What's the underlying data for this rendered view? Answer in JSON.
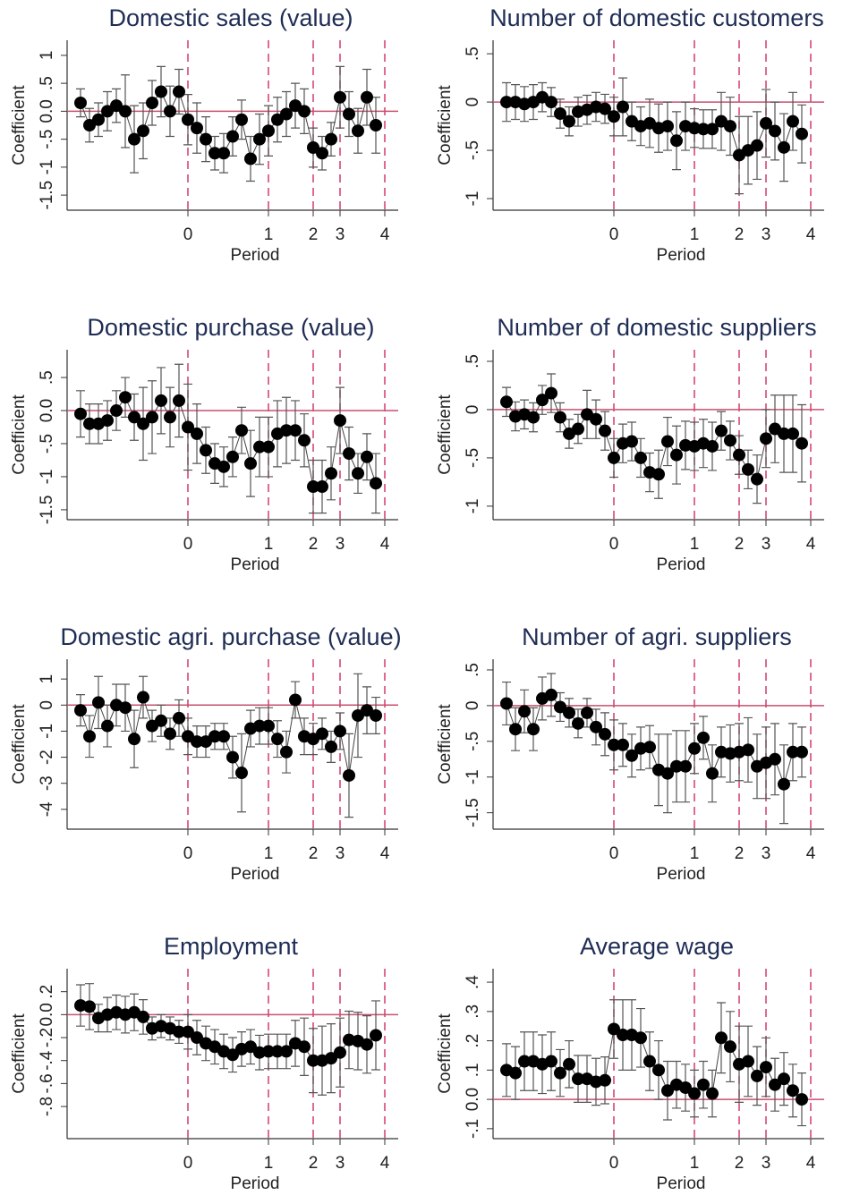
{
  "chart_data": [
    {
      "type": "errorbar",
      "title": "Domestic sales (value)",
      "xlabel": "Period",
      "ylabel": "Coefficient",
      "x": [
        -12,
        -11,
        -10,
        -9,
        -8,
        -7,
        -6,
        -5,
        -4,
        -3,
        -2,
        -1,
        0,
        1,
        2,
        3,
        4,
        5,
        6,
        7,
        8,
        9,
        10,
        11,
        12,
        13,
        14,
        15,
        16,
        17,
        18,
        19,
        20,
        21
      ],
      "values": [
        0.15,
        -0.25,
        -0.15,
        0.0,
        0.1,
        0.0,
        -0.5,
        -0.35,
        0.15,
        0.35,
        0.0,
        0.35,
        -0.15,
        -0.3,
        -0.5,
        -0.75,
        -0.75,
        -0.45,
        -0.15,
        -0.85,
        -0.5,
        -0.35,
        -0.15,
        -0.05,
        0.1,
        0.0,
        -0.65,
        -0.75,
        -0.5,
        0.25,
        -0.05,
        -0.35,
        0.25,
        -0.25
      ],
      "errors": [
        0.25,
        0.3,
        0.3,
        0.35,
        0.3,
        0.65,
        0.6,
        0.5,
        0.4,
        0.45,
        0.45,
        0.4,
        0.45,
        0.45,
        0.4,
        0.3,
        0.35,
        0.35,
        0.35,
        0.4,
        0.45,
        0.45,
        0.4,
        0.4,
        0.4,
        0.4,
        0.35,
        0.3,
        0.3,
        0.55,
        0.4,
        0.4,
        0.5,
        0.5
      ],
      "xlim": [
        -13.5,
        23.5
      ],
      "ylim": [
        -1.77,
        1.27
      ],
      "xticks": [
        {
          "value": 0,
          "label": "0"
        },
        {
          "value": 9,
          "label": "1"
        },
        {
          "value": 14,
          "label": "2"
        },
        {
          "value": 17,
          "label": "3"
        },
        {
          "value": 22,
          "label": "4"
        }
      ],
      "yticks": [
        {
          "value": 1,
          "label": "1"
        },
        {
          "value": 0.5,
          "label": ".5"
        },
        {
          "value": 0,
          "label": "0.0"
        },
        {
          "value": -0.5,
          "label": "-.5"
        },
        {
          "value": -1,
          "label": "-1"
        },
        {
          "value": -1.5,
          "label": "-1.5"
        }
      ],
      "hline": 0
    },
    {
      "type": "errorbar",
      "title": "Number of domestic customers",
      "xlabel": "Period",
      "ylabel": "Coefficient",
      "x": [
        -12,
        -11,
        -10,
        -9,
        -8,
        -7,
        -6,
        -5,
        -4,
        -3,
        -2,
        -1,
        0,
        1,
        2,
        3,
        4,
        5,
        6,
        7,
        8,
        9,
        10,
        11,
        12,
        13,
        14,
        15,
        16,
        17,
        18,
        19,
        20,
        21
      ],
      "values": [
        0.0,
        0.0,
        -0.02,
        0.0,
        0.05,
        0.0,
        -0.12,
        -0.2,
        -0.1,
        -0.08,
        -0.05,
        -0.07,
        -0.15,
        -0.05,
        -0.2,
        -0.25,
        -0.22,
        -0.27,
        -0.25,
        -0.4,
        -0.25,
        -0.27,
        -0.28,
        -0.28,
        -0.2,
        -0.25,
        -0.55,
        -0.5,
        -0.45,
        -0.22,
        -0.3,
        -0.47,
        -0.2,
        -0.33
      ],
      "errors": [
        0.2,
        0.18,
        0.18,
        0.18,
        0.15,
        0.15,
        0.15,
        0.15,
        0.15,
        0.15,
        0.15,
        0.15,
        0.2,
        0.3,
        0.2,
        0.2,
        0.25,
        0.25,
        0.25,
        0.3,
        0.25,
        0.2,
        0.2,
        0.2,
        0.3,
        0.3,
        0.4,
        0.35,
        0.35,
        0.35,
        0.3,
        0.35,
        0.3,
        0.3
      ],
      "xlim": [
        -13.5,
        23.5
      ],
      "ylim": [
        -1.12,
        0.64
      ],
      "xticks": [
        {
          "value": 0,
          "label": "0"
        },
        {
          "value": 9,
          "label": "1"
        },
        {
          "value": 14,
          "label": "2"
        },
        {
          "value": 17,
          "label": "3"
        },
        {
          "value": 22,
          "label": "4"
        }
      ],
      "yticks": [
        {
          "value": 0.5,
          "label": ".5"
        },
        0,
        {
          "value": -0.5,
          "label": "-.5"
        },
        -1
      ],
      "hline": 0
    },
    {
      "type": "errorbar",
      "title": "Domestic purchase (value)",
      "xlabel": "Period",
      "ylabel": "Coefficient",
      "x": [
        -12,
        -11,
        -10,
        -9,
        -8,
        -7,
        -6,
        -5,
        -4,
        -3,
        -2,
        -1,
        0,
        1,
        2,
        3,
        4,
        5,
        6,
        7,
        8,
        9,
        10,
        11,
        12,
        13,
        14,
        15,
        16,
        17,
        18,
        19,
        20,
        21
      ],
      "values": [
        -0.05,
        -0.2,
        -0.2,
        -0.15,
        0.0,
        0.2,
        -0.1,
        -0.2,
        -0.1,
        0.15,
        -0.1,
        0.15,
        -0.25,
        -0.35,
        -0.6,
        -0.8,
        -0.85,
        -0.7,
        -0.3,
        -0.8,
        -0.55,
        -0.55,
        -0.35,
        -0.3,
        -0.3,
        -0.45,
        -1.15,
        -1.15,
        -0.95,
        -0.15,
        -0.65,
        -0.95,
        -0.7,
        -1.1
      ],
      "errors": [
        0.35,
        0.3,
        0.3,
        0.3,
        0.3,
        0.3,
        0.35,
        0.55,
        0.55,
        0.5,
        0.45,
        0.55,
        0.65,
        0.45,
        0.35,
        0.3,
        0.3,
        0.3,
        0.35,
        0.5,
        0.45,
        0.45,
        0.5,
        0.5,
        0.45,
        0.4,
        0.4,
        0.4,
        0.4,
        0.5,
        0.4,
        0.3,
        0.35,
        0.45
      ],
      "xlim": [
        -13.5,
        23.5
      ],
      "ylim": [
        -1.65,
        0.92
      ],
      "xticks": [
        {
          "value": 0,
          "label": "0"
        },
        {
          "value": 9,
          "label": "1"
        },
        {
          "value": 14,
          "label": "2"
        },
        {
          "value": 17,
          "label": "3"
        },
        {
          "value": 22,
          "label": "4"
        }
      ],
      "yticks": [
        {
          "value": 0.5,
          "label": ".5"
        },
        {
          "value": 0,
          "label": "0.0"
        },
        {
          "value": -0.5,
          "label": "-.5"
        },
        -1,
        {
          "value": -1.5,
          "label": "-1.5"
        }
      ],
      "hline": 0
    },
    {
      "type": "errorbar",
      "title": "Number of domestic suppliers",
      "xlabel": "Period",
      "ylabel": "Coefficient",
      "x": [
        -12,
        -11,
        -10,
        -9,
        -8,
        -7,
        -6,
        -5,
        -4,
        -3,
        -2,
        -1,
        0,
        1,
        2,
        3,
        4,
        5,
        6,
        7,
        8,
        9,
        10,
        11,
        12,
        13,
        14,
        15,
        16,
        17,
        18,
        19,
        20,
        21
      ],
      "values": [
        0.08,
        -0.07,
        -0.05,
        -0.08,
        0.1,
        0.17,
        -0.08,
        -0.25,
        -0.2,
        -0.05,
        -0.1,
        -0.22,
        -0.5,
        -0.35,
        -0.33,
        -0.5,
        -0.65,
        -0.67,
        -0.33,
        -0.47,
        -0.37,
        -0.38,
        -0.35,
        -0.38,
        -0.22,
        -0.32,
        -0.47,
        -0.62,
        -0.72,
        -0.3,
        -0.2,
        -0.25,
        -0.25,
        -0.35
      ],
      "errors": [
        0.15,
        0.15,
        0.15,
        0.15,
        0.15,
        0.2,
        0.15,
        0.15,
        0.15,
        0.25,
        0.2,
        0.2,
        0.2,
        0.2,
        0.2,
        0.2,
        0.2,
        0.25,
        0.25,
        0.3,
        0.25,
        0.25,
        0.25,
        0.25,
        0.2,
        0.2,
        0.2,
        0.2,
        0.25,
        0.3,
        0.35,
        0.4,
        0.4,
        0.4
      ],
      "xlim": [
        -13.5,
        23.5
      ],
      "ylim": [
        -1.14,
        0.62
      ],
      "xticks": [
        {
          "value": 0,
          "label": "0"
        },
        {
          "value": 9,
          "label": "1"
        },
        {
          "value": 14,
          "label": "2"
        },
        {
          "value": 17,
          "label": "3"
        },
        {
          "value": 22,
          "label": "4"
        }
      ],
      "yticks": [
        {
          "value": 0.5,
          "label": ".5"
        },
        0,
        {
          "value": -0.5,
          "label": "-.5"
        },
        -1
      ],
      "hline": 0
    },
    {
      "type": "errorbar",
      "title": "Domestic agri. purchase (value)",
      "xlabel": "Period",
      "ylabel": "Coefficient",
      "x": [
        -12,
        -11,
        -10,
        -9,
        -8,
        -7,
        -6,
        -5,
        -4,
        -3,
        -2,
        -1,
        0,
        1,
        2,
        3,
        4,
        5,
        6,
        7,
        8,
        9,
        10,
        11,
        12,
        13,
        14,
        15,
        16,
        17,
        18,
        19,
        20,
        21
      ],
      "values": [
        -0.2,
        -1.2,
        0.1,
        -0.8,
        0.0,
        -0.1,
        -1.3,
        0.3,
        -0.8,
        -0.6,
        -1.1,
        -0.5,
        -1.2,
        -1.4,
        -1.4,
        -1.2,
        -1.2,
        -2.0,
        -2.6,
        -0.9,
        -0.8,
        -0.8,
        -1.3,
        -1.8,
        0.2,
        -1.2,
        -1.3,
        -1.1,
        -1.6,
        -1.0,
        -2.7,
        -0.4,
        -0.2,
        -0.4
      ],
      "errors": [
        0.6,
        0.8,
        1.0,
        0.8,
        0.8,
        0.9,
        1.1,
        0.8,
        0.6,
        0.6,
        0.6,
        0.7,
        0.7,
        0.6,
        0.6,
        0.5,
        0.5,
        0.8,
        1.5,
        0.7,
        0.7,
        0.7,
        0.7,
        0.8,
        0.7,
        0.7,
        0.6,
        0.6,
        0.6,
        0.7,
        1.6,
        1.6,
        0.9,
        0.7
      ],
      "xlim": [
        -13.5,
        23.5
      ],
      "ylim": [
        -4.76,
        1.76
      ],
      "xticks": [
        {
          "value": 0,
          "label": "0"
        },
        {
          "value": 9,
          "label": "1"
        },
        {
          "value": 14,
          "label": "2"
        },
        {
          "value": 17,
          "label": "3"
        },
        {
          "value": 22,
          "label": "4"
        }
      ],
      "yticks": [
        1,
        0,
        -1,
        -2,
        -3,
        -4
      ],
      "hline": 0
    },
    {
      "type": "errorbar",
      "title": "Number of agri. suppliers",
      "xlabel": "Period",
      "ylabel": "Coefficient",
      "x": [
        -12,
        -11,
        -10,
        -9,
        -8,
        -7,
        -6,
        -5,
        -4,
        -3,
        -2,
        -1,
        0,
        1,
        2,
        3,
        4,
        5,
        6,
        7,
        8,
        9,
        10,
        11,
        12,
        13,
        14,
        15,
        16,
        17,
        18,
        19,
        20,
        21
      ],
      "values": [
        0.03,
        -0.33,
        -0.08,
        -0.33,
        0.1,
        0.15,
        -0.02,
        -0.1,
        -0.25,
        -0.1,
        -0.3,
        -0.4,
        -0.55,
        -0.55,
        -0.7,
        -0.6,
        -0.58,
        -0.9,
        -0.95,
        -0.85,
        -0.85,
        -0.6,
        -0.45,
        -0.95,
        -0.65,
        -0.67,
        -0.65,
        -0.62,
        -0.85,
        -0.8,
        -0.75,
        -1.1,
        -0.65,
        -0.65
      ],
      "errors": [
        0.3,
        0.3,
        0.3,
        0.3,
        0.3,
        0.3,
        0.2,
        0.2,
        0.2,
        0.2,
        0.25,
        0.3,
        0.35,
        0.3,
        0.3,
        0.3,
        0.3,
        0.5,
        0.55,
        0.5,
        0.5,
        0.35,
        0.3,
        0.4,
        0.35,
        0.4,
        0.4,
        0.45,
        0.45,
        0.5,
        0.5,
        0.55,
        0.4,
        0.35
      ],
      "xlim": [
        -13.5,
        23.5
      ],
      "ylim": [
        -1.73,
        0.65
      ],
      "xticks": [
        {
          "value": 0,
          "label": "0"
        },
        {
          "value": 9,
          "label": "1"
        },
        {
          "value": 14,
          "label": "2"
        },
        {
          "value": 17,
          "label": "3"
        },
        {
          "value": 22,
          "label": "4"
        }
      ],
      "yticks": [
        {
          "value": 0.5,
          "label": ".5"
        },
        0,
        {
          "value": -0.5,
          "label": "-.5"
        },
        -1,
        {
          "value": -1.5,
          "label": "-1.5"
        }
      ],
      "hline": 0
    },
    {
      "type": "errorbar",
      "title": "Employment",
      "xlabel": "Period",
      "ylabel": "Coefficient",
      "x": [
        -12,
        -11,
        -10,
        -9,
        -8,
        -7,
        -6,
        -5,
        -4,
        -3,
        -2,
        -1,
        0,
        1,
        2,
        3,
        4,
        5,
        6,
        7,
        8,
        9,
        10,
        11,
        12,
        13,
        14,
        15,
        16,
        17,
        18,
        19,
        20,
        21
      ],
      "values": [
        0.08,
        0.07,
        -0.03,
        0.0,
        0.02,
        0.0,
        0.02,
        -0.02,
        -0.12,
        -0.1,
        -0.12,
        -0.15,
        -0.15,
        -0.2,
        -0.25,
        -0.28,
        -0.32,
        -0.35,
        -0.3,
        -0.28,
        -0.33,
        -0.32,
        -0.32,
        -0.32,
        -0.25,
        -0.28,
        -0.4,
        -0.4,
        -0.38,
        -0.33,
        -0.22,
        -0.23,
        -0.26,
        -0.18
      ],
      "errors": [
        0.18,
        0.2,
        0.12,
        0.15,
        0.15,
        0.16,
        0.16,
        0.15,
        0.1,
        0.1,
        0.1,
        0.1,
        0.15,
        0.15,
        0.15,
        0.15,
        0.15,
        0.15,
        0.15,
        0.15,
        0.15,
        0.15,
        0.15,
        0.15,
        0.2,
        0.25,
        0.28,
        0.3,
        0.3,
        0.3,
        0.25,
        0.25,
        0.25,
        0.3
      ],
      "xlim": [
        -13.5,
        23.5
      ],
      "ylim": [
        -1.08,
        0.4
      ],
      "xticks": [
        {
          "value": 0,
          "label": "0"
        },
        {
          "value": 9,
          "label": "1"
        },
        {
          "value": 14,
          "label": "2"
        },
        {
          "value": 17,
          "label": "3"
        },
        {
          "value": 22,
          "label": "4"
        }
      ],
      "yticks": [
        {
          "value": 0.2,
          "label": ".2"
        },
        {
          "value": 0,
          "label": "0.0"
        },
        {
          "value": -0.2,
          "label": "-.2"
        },
        {
          "value": -0.4,
          "label": "-.4"
        },
        {
          "value": -0.6,
          "label": "-.6"
        },
        {
          "value": -0.8,
          "label": "-.8"
        }
      ],
      "hline": 0
    },
    {
      "type": "errorbar",
      "title": "Average wage",
      "xlabel": "Period",
      "ylabel": "Coefficient",
      "x": [
        -12,
        -11,
        -10,
        -9,
        -8,
        -7,
        -6,
        -5,
        -4,
        -3,
        -2,
        -1,
        0,
        1,
        2,
        3,
        4,
        5,
        6,
        7,
        8,
        9,
        10,
        11,
        12,
        13,
        14,
        15,
        16,
        17,
        18,
        19,
        20,
        21
      ],
      "values": [
        0.1,
        0.09,
        0.13,
        0.13,
        0.12,
        0.13,
        0.09,
        0.12,
        0.07,
        0.07,
        0.06,
        0.065,
        0.24,
        0.22,
        0.22,
        0.21,
        0.13,
        0.1,
        0.03,
        0.05,
        0.04,
        0.02,
        0.05,
        0.02,
        0.21,
        0.18,
        0.12,
        0.13,
        0.08,
        0.11,
        0.05,
        0.07,
        0.03,
        0.0
      ],
      "errors": [
        0.09,
        0.09,
        0.1,
        0.1,
        0.1,
        0.1,
        0.08,
        0.08,
        0.08,
        0.08,
        0.08,
        0.08,
        0.1,
        0.12,
        0.12,
        0.1,
        0.1,
        0.1,
        0.1,
        0.08,
        0.08,
        0.08,
        0.08,
        0.08,
        0.12,
        0.12,
        0.13,
        0.12,
        0.1,
        0.1,
        0.09,
        0.09,
        0.09,
        0.09
      ],
      "xlim": [
        -13.5,
        23.5
      ],
      "ylim": [
        -0.134,
        0.446
      ],
      "xticks": [
        {
          "value": 0,
          "label": "0"
        },
        {
          "value": 9,
          "label": "1"
        },
        {
          "value": 14,
          "label": "2"
        },
        {
          "value": 17,
          "label": "3"
        },
        {
          "value": 22,
          "label": "4"
        }
      ],
      "yticks": [
        {
          "value": 0.4,
          "label": ".4"
        },
        {
          "value": 0.3,
          "label": ".3"
        },
        {
          "value": 0.2,
          "label": ".2"
        },
        {
          "value": 0.1,
          "label": ".1"
        },
        {
          "value": 0,
          "label": "0.0"
        },
        {
          "value": -0.1,
          "label": "-.1"
        }
      ],
      "hline": 0
    }
  ]
}
